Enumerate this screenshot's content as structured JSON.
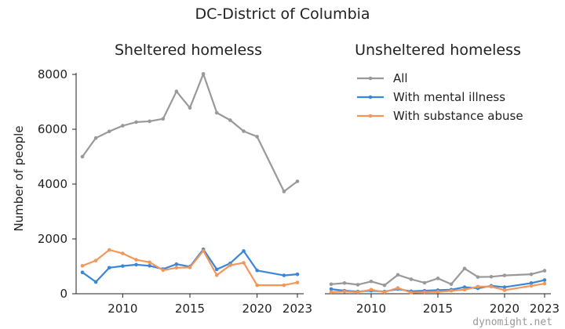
{
  "title": "DC-District of Columbia",
  "watermark": "dynomight.net",
  "chart_data": [
    {
      "type": "line",
      "title": "Sheltered homeless",
      "ylabel": "Number of people",
      "xlim": [
        2007,
        2023
      ],
      "ylim": [
        0,
        8000
      ],
      "yticks": [
        0,
        2000,
        4000,
        6000,
        8000
      ],
      "xticks": [
        2010,
        2015,
        2020,
        2023
      ],
      "x": [
        2007,
        2008,
        2009,
        2010,
        2011,
        2012,
        2013,
        2014,
        2015,
        2016,
        2017,
        2018,
        2019,
        2020,
        2022,
        2023
      ],
      "series": [
        {
          "name": "All",
          "color": "#999999",
          "values": [
            5000,
            5680,
            5920,
            6130,
            6260,
            6290,
            6380,
            7380,
            6780,
            8020,
            6600,
            6330,
            5930,
            5730,
            3730,
            4100
          ]
        },
        {
          "name": "With mental illness",
          "color": "#3a86d8",
          "values": [
            780,
            430,
            950,
            1010,
            1060,
            1020,
            900,
            1080,
            990,
            1620,
            890,
            1110,
            1560,
            850,
            670,
            710
          ]
        },
        {
          "name": "With substance abuse",
          "color": "#f4965a",
          "values": [
            1020,
            1210,
            1600,
            1470,
            1240,
            1150,
            860,
            950,
            960,
            1570,
            680,
            1040,
            1130,
            310,
            310,
            410
          ]
        }
      ]
    },
    {
      "type": "line",
      "title": "Unsheltered homeless",
      "xlim": [
        2007,
        2023
      ],
      "ylim": [
        0,
        8000
      ],
      "xticks": [
        2010,
        2015,
        2020,
        2023
      ],
      "legend": "top-left",
      "x": [
        2007,
        2008,
        2009,
        2010,
        2011,
        2012,
        2013,
        2014,
        2015,
        2016,
        2017,
        2018,
        2019,
        2020,
        2022,
        2023
      ],
      "series": [
        {
          "name": "All",
          "color": "#999999",
          "values": [
            350,
            390,
            330,
            450,
            310,
            690,
            530,
            400,
            560,
            350,
            920,
            610,
            620,
            670,
            710,
            840
          ]
        },
        {
          "name": "With mental illness",
          "color": "#3a86d8",
          "values": [
            170,
            110,
            80,
            110,
            80,
            170,
            90,
            110,
            130,
            150,
            240,
            200,
            290,
            240,
            390,
            500
          ]
        },
        {
          "name": "With substance abuse",
          "color": "#f4965a",
          "values": [
            60,
            80,
            60,
            150,
            60,
            210,
            40,
            60,
            70,
            110,
            150,
            260,
            260,
            130,
            290,
            370
          ]
        }
      ]
    }
  ]
}
